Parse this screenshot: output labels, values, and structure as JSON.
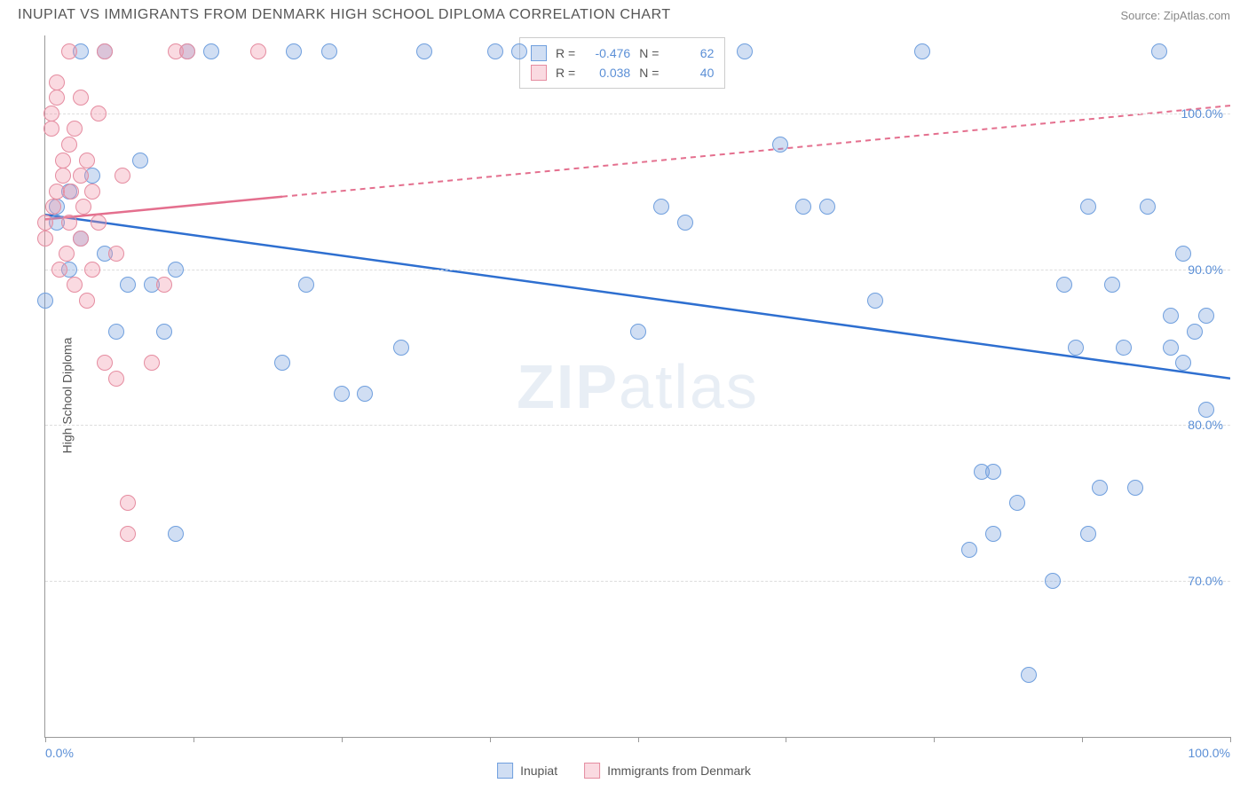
{
  "title": "INUPIAT VS IMMIGRANTS FROM DENMARK HIGH SCHOOL DIPLOMA CORRELATION CHART",
  "source": "Source: ZipAtlas.com",
  "ylabel": "High School Diploma",
  "watermark_a": "ZIP",
  "watermark_b": "atlas",
  "chart": {
    "type": "scatter",
    "xlim": [
      0,
      100
    ],
    "ylim": [
      60,
      105
    ],
    "y_gridlines": [
      70,
      80,
      90,
      100
    ],
    "y_tick_labels": [
      "70.0%",
      "80.0%",
      "90.0%",
      "100.0%"
    ],
    "x_ticks": [
      0,
      12.5,
      25,
      37.5,
      50,
      62.5,
      75,
      87.5,
      100
    ],
    "x_tick_labels": {
      "0": "0.0%",
      "100": "100.0%"
    },
    "grid_color": "#dddddd",
    "axis_color": "#999999",
    "background": "#ffffff",
    "point_radius": 9,
    "series": [
      {
        "name": "Inupiat",
        "fill": "rgba(120,160,220,0.35)",
        "stroke": "#6f9fde",
        "trend_color": "#2e6fd0",
        "trend_dash": "none",
        "trend": {
          "x1": 0,
          "y1": 93.5,
          "x2": 100,
          "y2": 83
        },
        "R": "-0.476",
        "N": "62",
        "points": [
          [
            0,
            88
          ],
          [
            1,
            93
          ],
          [
            1,
            94
          ],
          [
            2,
            95
          ],
          [
            2,
            90
          ],
          [
            3,
            92
          ],
          [
            3,
            104
          ],
          [
            4,
            96
          ],
          [
            5,
            104
          ],
          [
            5,
            91
          ],
          [
            6,
            86
          ],
          [
            7,
            89
          ],
          [
            8,
            97
          ],
          [
            9,
            89
          ],
          [
            10,
            86
          ],
          [
            11,
            90
          ],
          [
            11,
            73
          ],
          [
            12,
            104
          ],
          [
            14,
            104
          ],
          [
            20,
            84
          ],
          [
            21,
            104
          ],
          [
            22,
            89
          ],
          [
            24,
            104
          ],
          [
            25,
            82
          ],
          [
            27,
            82
          ],
          [
            30,
            85
          ],
          [
            32,
            104
          ],
          [
            38,
            104
          ],
          [
            40,
            104
          ],
          [
            50,
            86
          ],
          [
            52,
            94
          ],
          [
            54,
            93
          ],
          [
            59,
            104
          ],
          [
            62,
            98
          ],
          [
            64,
            94
          ],
          [
            66,
            94
          ],
          [
            70,
            88
          ],
          [
            74,
            104
          ],
          [
            78,
            72
          ],
          [
            79,
            77
          ],
          [
            80,
            77
          ],
          [
            80,
            73
          ],
          [
            82,
            75
          ],
          [
            83,
            64
          ],
          [
            85,
            70
          ],
          [
            86,
            89
          ],
          [
            87,
            85
          ],
          [
            88,
            94
          ],
          [
            88,
            73
          ],
          [
            89,
            76
          ],
          [
            90,
            89
          ],
          [
            91,
            85
          ],
          [
            92,
            76
          ],
          [
            93,
            94
          ],
          [
            94,
            104
          ],
          [
            95,
            87
          ],
          [
            95,
            85
          ],
          [
            96,
            91
          ],
          [
            96,
            84
          ],
          [
            97,
            86
          ],
          [
            98,
            87
          ],
          [
            98,
            81
          ]
        ]
      },
      {
        "name": "Immigrants from Denmark",
        "fill": "rgba(240,150,170,0.35)",
        "stroke": "#e58ca0",
        "trend_color": "#e46f8e",
        "trend_dash": "6,5",
        "trend_solid_until": 20,
        "trend": {
          "x1": 0,
          "y1": 93.2,
          "x2": 100,
          "y2": 100.5
        },
        "R": "0.038",
        "N": "40",
        "points": [
          [
            0,
            92
          ],
          [
            0,
            93
          ],
          [
            0.5,
            99
          ],
          [
            0.5,
            100
          ],
          [
            0.7,
            94
          ],
          [
            1,
            95
          ],
          [
            1,
            101
          ],
          [
            1,
            102
          ],
          [
            1.2,
            90
          ],
          [
            1.5,
            96
          ],
          [
            1.5,
            97
          ],
          [
            1.8,
            91
          ],
          [
            2,
            98
          ],
          [
            2,
            93
          ],
          [
            2,
            104
          ],
          [
            2.2,
            95
          ],
          [
            2.5,
            99
          ],
          [
            2.5,
            89
          ],
          [
            3,
            96
          ],
          [
            3,
            92
          ],
          [
            3,
            101
          ],
          [
            3.2,
            94
          ],
          [
            3.5,
            88
          ],
          [
            3.5,
            97
          ],
          [
            4,
            95
          ],
          [
            4,
            90
          ],
          [
            4.5,
            93
          ],
          [
            4.5,
            100
          ],
          [
            5,
            84
          ],
          [
            5,
            104
          ],
          [
            6,
            91
          ],
          [
            6,
            83
          ],
          [
            6.5,
            96
          ],
          [
            7,
            75
          ],
          [
            7,
            73
          ],
          [
            9,
            84
          ],
          [
            10,
            89
          ],
          [
            11,
            104
          ],
          [
            12,
            104
          ],
          [
            18,
            104
          ]
        ]
      }
    ]
  },
  "legend": {
    "series1": "Inupiat",
    "series2": "Immigrants from Denmark"
  },
  "stats_labels": {
    "R": "R =",
    "N": "N ="
  }
}
